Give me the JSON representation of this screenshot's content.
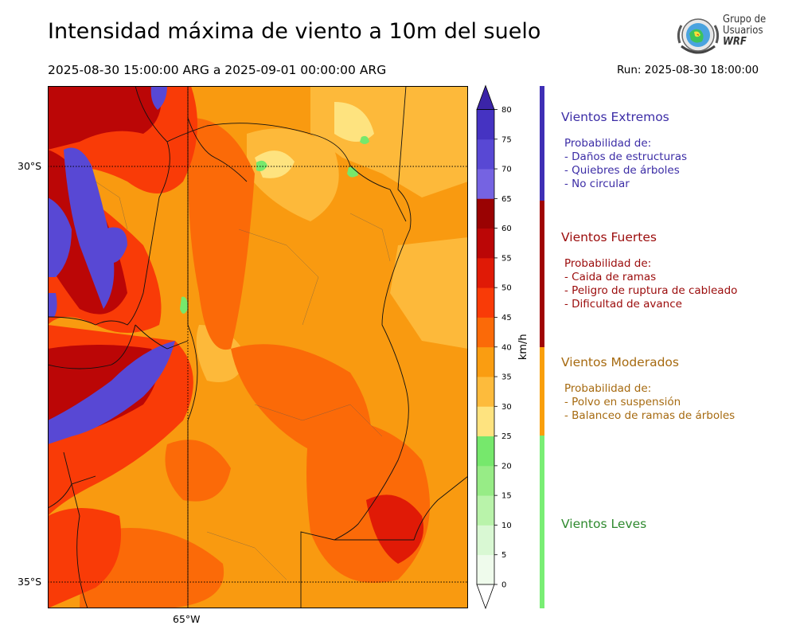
{
  "header": {
    "title": "Intensidad máxima de viento a 10m del suelo",
    "subtitle": "2025-08-30 15:00:00 ARG  a  2025-09-01 00:00:00 ARG",
    "run": "Run: 2025-08-30 18:00:00"
  },
  "logo": {
    "line1": "Grupo de",
    "line2": "Usuarios",
    "line3": "WRF"
  },
  "axes": {
    "lat_labels": [
      "30°S",
      "35°S"
    ],
    "lon_labels": [
      "65°W"
    ]
  },
  "colorbar": {
    "unit_label": "km/h",
    "levels": [
      0,
      5,
      10,
      15,
      20,
      25,
      30,
      35,
      40,
      45,
      50,
      55,
      60,
      65,
      70,
      75,
      80
    ],
    "colors": [
      "#effbec",
      "#d9f8d3",
      "#b9f3aa",
      "#97ec86",
      "#76e86c",
      "#fee37f",
      "#fdbb3c",
      "#fa9d11",
      "#fb6a08",
      "#f93b07",
      "#e01a06",
      "#bb0606",
      "#9a0202",
      "#7563e2",
      "#5848d4",
      "#4533c2"
    ],
    "overflow_color": "#3b24a8"
  },
  "legend": {
    "categories": [
      {
        "title": "Vientos Extremos",
        "color": "#3c2da6",
        "desc": [
          "Probabilidad de:",
          "- Daños de estructuras",
          "- Quiebres de árboles",
          "- No circular"
        ]
      },
      {
        "title": "Vientos Fuertes",
        "color": "#9b0b0b",
        "desc": [
          "Probabilidad de:",
          "- Caida de ramas",
          "- Peligro de ruptura de cableado",
          "- Dificultad de avance"
        ]
      },
      {
        "title": "Vientos Moderados",
        "color": "#a66a10",
        "desc": [
          "Probabilidad de:",
          "- Polvo en suspensión",
          "- Balanceo de ramas de árboles"
        ]
      },
      {
        "title": "Vientos Leves",
        "color": "#2f8a2f",
        "desc": []
      }
    ],
    "bar_colors": [
      "#3f2fb5",
      "#a00505",
      "#f99f0b",
      "#79ee74"
    ]
  }
}
